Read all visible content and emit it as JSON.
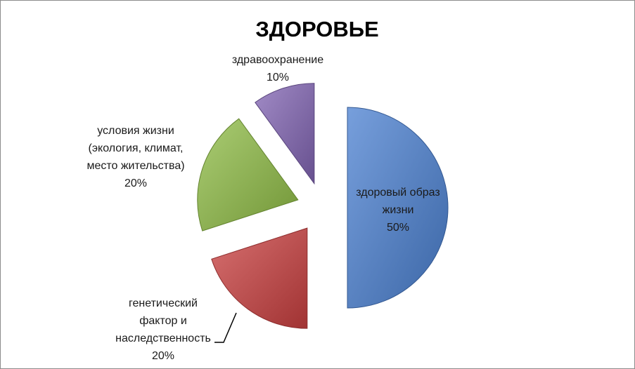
{
  "chart_data": {
    "type": "pie",
    "title": "ЗДОРОВЬЕ",
    "categories": [
      "здоровый образ жизни",
      "генетический фактор и наследственность",
      "условия жизни (экология, климат, место жительства)",
      "здравоохранение"
    ],
    "values": [
      50,
      20,
      20,
      10
    ],
    "value_labels": [
      "50%",
      "20%",
      "20%",
      "10%"
    ],
    "colors": [
      "#4a7fd0",
      "#c94040",
      "#8fbc45",
      "#8164b3"
    ],
    "exploded": true
  }
}
